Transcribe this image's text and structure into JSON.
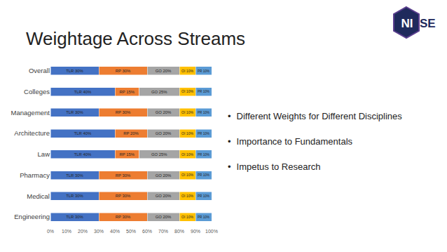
{
  "title": "Weightage Across Streams",
  "logo": [
    "NI",
    "SE"
  ],
  "bullets": [
    "Different Weights for Different Disciplines",
    "Importance to Fundamentals",
    "Impetus to Research"
  ],
  "chart_data": {
    "type": "bar",
    "orientation": "horizontal",
    "stacked": true,
    "data_labels": true,
    "grid": false,
    "categories": [
      "Engineering",
      "Medical",
      "Pharmacy",
      "Law",
      "Architecture",
      "Management",
      "Colleges",
      "Overall"
    ],
    "series": [
      {
        "color": "#4472c4",
        "values": [
          30,
          30,
          30,
          40,
          40,
          30,
          40,
          30
        ],
        "value_labels": [
          "TLR 30%",
          "TLR 30%",
          "TLR 30%",
          "TLR 40%",
          "TLR 40%",
          "TLR 30%",
          "TLR 40%",
          "TLR 30%"
        ]
      },
      {
        "color": "#ed7d31",
        "values": [
          30,
          30,
          30,
          15,
          20,
          30,
          15,
          30
        ],
        "value_labels": [
          "RP 30%",
          "RP 30%",
          "RP 30%",
          "RP 15%",
          "RP 20%",
          "RP 30%",
          "RP 15%",
          "RP 30%"
        ]
      },
      {
        "color": "#a5a5a5",
        "values": [
          20,
          20,
          20,
          25,
          20,
          20,
          25,
          20
        ],
        "value_labels": [
          "GO 20%",
          "GO 20%",
          "GO 20%",
          "GO 25%",
          "GO 20%",
          "GO 20%",
          "GO 25%",
          "GO 20%"
        ]
      },
      {
        "color": "#ffc000",
        "values": [
          10,
          10,
          10,
          10,
          10,
          10,
          10,
          10
        ],
        "value_labels": [
          "OI 10%",
          "OI 10%",
          "OI 10%",
          "OI 10%",
          "OI 10%",
          "OI 10%",
          "OI 10%",
          "OI 10%"
        ]
      },
      {
        "color": "#5b9bd5",
        "values": [
          10,
          10,
          10,
          10,
          10,
          10,
          10,
          10
        ],
        "value_labels": [
          "PR 10%",
          "PR 10%",
          "PR 10%",
          "PR 10%",
          "PR 10%",
          "PR 10%",
          "PR 10%",
          "PR 10%"
        ]
      }
    ],
    "xlim": [
      0,
      100
    ],
    "xticks": [
      {
        "value": 0,
        "label": "0%"
      },
      {
        "value": 10,
        "label": "10%"
      },
      {
        "value": 20,
        "label": "20%"
      },
      {
        "value": 30,
        "label": "30%"
      },
      {
        "value": 40,
        "label": "40%"
      },
      {
        "value": 50,
        "label": "50%"
      },
      {
        "value": 60,
        "label": "60%"
      },
      {
        "value": 70,
        "label": "70%"
      },
      {
        "value": 80,
        "label": "80%"
      },
      {
        "value": 90,
        "label": "90%"
      },
      {
        "value": 100,
        "label": "100%"
      }
    ]
  }
}
